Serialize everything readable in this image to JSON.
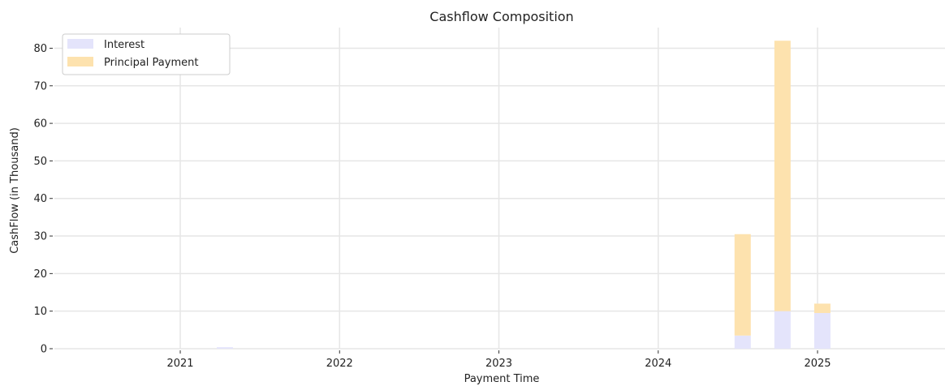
{
  "chart_data": {
    "type": "bar",
    "stacked": true,
    "title": "Cashflow Composition",
    "xlabel": "Payment Time",
    "ylabel": "CashFlow (in Thousand)",
    "xlim": [
      2020.21,
      2025.8
    ],
    "ylim": [
      0,
      85.5
    ],
    "xticks": [
      2021,
      2022,
      2023,
      2024,
      2025
    ],
    "xtick_labels": [
      "2021",
      "2022",
      "2023",
      "2024",
      "2025"
    ],
    "yticks": [
      0,
      10,
      20,
      30,
      40,
      50,
      60,
      70,
      80
    ],
    "ytick_labels": [
      "0",
      "10",
      "20",
      "30",
      "40",
      "50",
      "60",
      "70",
      "80"
    ],
    "grid": true,
    "legend_position": "top-left",
    "x": [
      2021.28,
      2024.53,
      2024.78,
      2025.03
    ],
    "series": [
      {
        "name": "Interest",
        "color": "#e4e4fb",
        "values": [
          0.4,
          3.5,
          10.0,
          9.5
        ]
      },
      {
        "name": "Principal Payment",
        "color": "#fde2ae",
        "values": [
          0.0,
          27.0,
          72.0,
          2.5
        ]
      }
    ]
  }
}
